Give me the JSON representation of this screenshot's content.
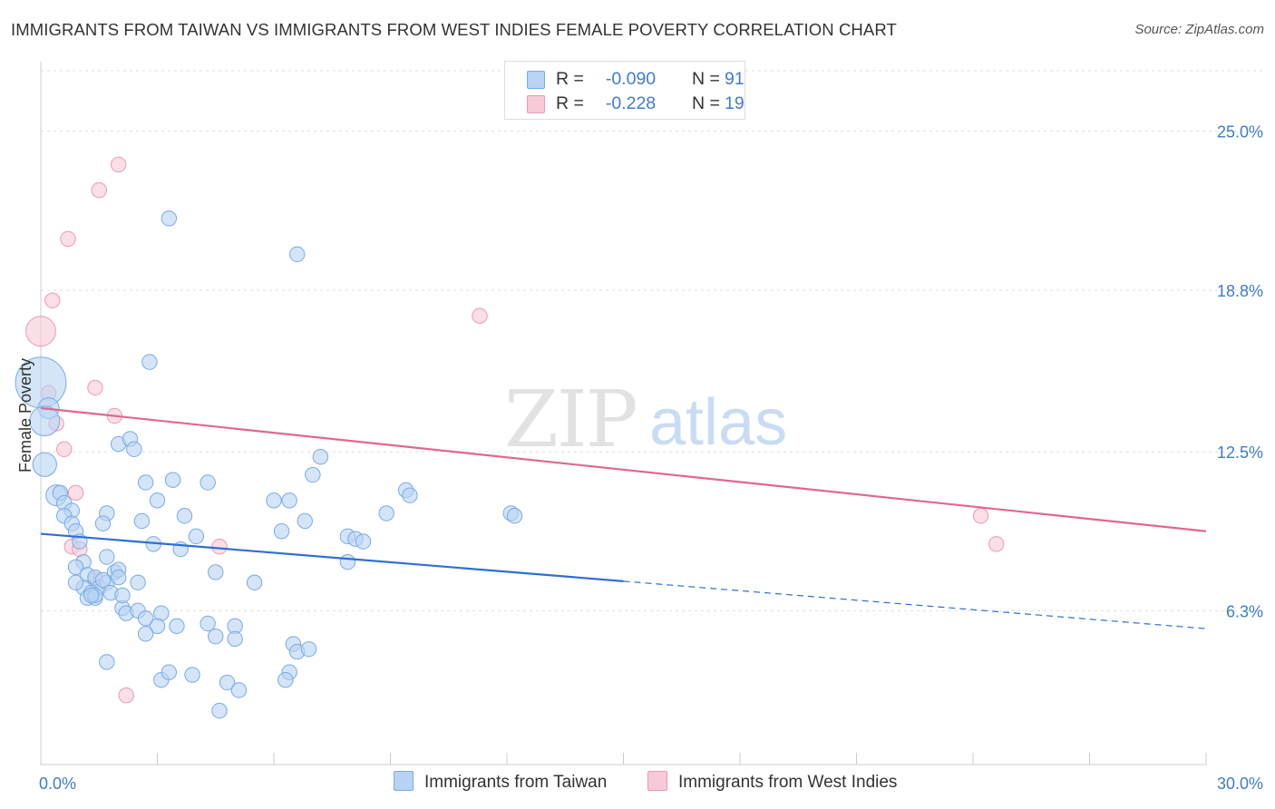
{
  "header": {
    "title": "IMMIGRANTS FROM TAIWAN VS IMMIGRANTS FROM WEST INDIES FEMALE POVERTY CORRELATION CHART",
    "source": "Source: ZipAtlas.com"
  },
  "colors": {
    "taiwan_fill": "#b8d3f4",
    "taiwan_stroke": "#7aaae6",
    "taiwan_line": "#2f6fd1",
    "westindies_fill": "#f8c9d7",
    "westindies_stroke": "#eb9ab4",
    "westindies_line": "#e0688f",
    "tick_label": "#3f7bd1",
    "grid": "#dddddd"
  },
  "legend": {
    "r_label": "R =",
    "n_label": "N =",
    "taiwan": {
      "r": "-0.090",
      "n": "91"
    },
    "westindies": {
      "r": "-0.228",
      "n": "19"
    }
  },
  "chart_data": {
    "type": "scatter",
    "title": "IMMIGRANTS FROM TAIWAN VS IMMIGRANTS FROM WEST INDIES FEMALE POVERTY CORRELATION CHART",
    "xlabel": "",
    "ylabel": "Female Poverty",
    "xlim": [
      0,
      30
    ],
    "ylim": [
      0.3,
      27.5
    ],
    "x_tick_labels": [
      "0.0%",
      "30.0%"
    ],
    "y_ticks": [
      6.3,
      12.5,
      18.8,
      25.0
    ],
    "y_tick_labels": [
      "6.3%",
      "12.5%",
      "18.8%",
      "25.0%"
    ],
    "watermark": {
      "zip": "ZIP",
      "atlas": "atlas"
    },
    "series": [
      {
        "name": "Immigrants from Taiwan",
        "r": -0.09,
        "n": 91,
        "trend": {
          "x0": 0.0,
          "y0": 9.3,
          "x_solid_end": 15.0,
          "x1": 30.0,
          "y1": 5.6
        },
        "points": [
          [
            0.0,
            15.2,
            34
          ],
          [
            0.2,
            14.2,
            14
          ],
          [
            0.1,
            13.7,
            20
          ],
          [
            0.1,
            12.0,
            16
          ],
          [
            0.4,
            10.8,
            14
          ],
          [
            0.5,
            10.9,
            10
          ],
          [
            0.6,
            10.5,
            10
          ],
          [
            0.8,
            10.2,
            10
          ],
          [
            0.6,
            10.0,
            10
          ],
          [
            0.8,
            9.7,
            10
          ],
          [
            0.9,
            9.4,
            10
          ],
          [
            1.0,
            9.0,
            10
          ],
          [
            1.1,
            8.2,
            10
          ],
          [
            0.9,
            8.0,
            10
          ],
          [
            1.2,
            7.7,
            10
          ],
          [
            1.1,
            7.2,
            10
          ],
          [
            1.4,
            7.6,
            10
          ],
          [
            1.5,
            7.2,
            10
          ],
          [
            1.7,
            7.4,
            10
          ],
          [
            1.8,
            7.0,
            10
          ],
          [
            1.3,
            7.0,
            10
          ],
          [
            1.2,
            6.8,
            10
          ],
          [
            1.4,
            6.8,
            10
          ],
          [
            1.4,
            6.9,
            10
          ],
          [
            2.1,
            6.4,
            10
          ],
          [
            2.2,
            6.2,
            10
          ],
          [
            2.5,
            6.3,
            10
          ],
          [
            2.7,
            6.0,
            10
          ],
          [
            3.1,
            6.2,
            10
          ],
          [
            3.0,
            5.7,
            10
          ],
          [
            3.5,
            5.7,
            10
          ],
          [
            2.7,
            5.4,
            10
          ],
          [
            1.7,
            8.4,
            10
          ],
          [
            1.9,
            7.8,
            10
          ],
          [
            2.0,
            7.9,
            10
          ],
          [
            2.5,
            7.4,
            10
          ],
          [
            2.9,
            8.9,
            10
          ],
          [
            3.6,
            8.7,
            10
          ],
          [
            4.0,
            9.2,
            10
          ],
          [
            3.7,
            10.0,
            10
          ],
          [
            2.6,
            9.8,
            10
          ],
          [
            3.0,
            10.6,
            10
          ],
          [
            2.7,
            11.3,
            10
          ],
          [
            3.4,
            11.4,
            10
          ],
          [
            4.3,
            11.3,
            10
          ],
          [
            2.0,
            12.8,
            10
          ],
          [
            2.3,
            13.0,
            10
          ],
          [
            2.4,
            12.6,
            10
          ],
          [
            1.7,
            10.1,
            10
          ],
          [
            1.6,
            9.7,
            10
          ],
          [
            1.6,
            7.5,
            10
          ],
          [
            2.0,
            7.6,
            10
          ],
          [
            4.5,
            7.8,
            10
          ],
          [
            4.3,
            5.8,
            10
          ],
          [
            4.5,
            5.3,
            10
          ],
          [
            5.5,
            7.4,
            10
          ],
          [
            6.0,
            10.6,
            10
          ],
          [
            6.4,
            10.6,
            10
          ],
          [
            6.2,
            9.4,
            10
          ],
          [
            6.8,
            9.8,
            10
          ],
          [
            7.0,
            11.6,
            10
          ],
          [
            7.2,
            12.3,
            10
          ],
          [
            7.9,
            9.2,
            10
          ],
          [
            8.1,
            9.1,
            10
          ],
          [
            8.3,
            9.0,
            10
          ],
          [
            7.9,
            8.2,
            10
          ],
          [
            8.9,
            10.1,
            10
          ],
          [
            9.4,
            11.0,
            10
          ],
          [
            9.5,
            10.8,
            10
          ],
          [
            12.1,
            10.1,
            10
          ],
          [
            12.2,
            10.0,
            10
          ],
          [
            2.8,
            16.0,
            10
          ],
          [
            3.3,
            21.6,
            10
          ],
          [
            6.6,
            20.2,
            10
          ],
          [
            6.5,
            5.0,
            10
          ],
          [
            6.6,
            4.7,
            10
          ],
          [
            6.9,
            4.8,
            10
          ],
          [
            6.4,
            3.9,
            10
          ],
          [
            6.3,
            3.6,
            10
          ],
          [
            5.0,
            5.7,
            10
          ],
          [
            5.0,
            5.2,
            10
          ],
          [
            3.1,
            3.6,
            10
          ],
          [
            3.3,
            3.9,
            10
          ],
          [
            3.9,
            3.8,
            10
          ],
          [
            4.8,
            3.5,
            10
          ],
          [
            5.1,
            3.2,
            10
          ],
          [
            4.6,
            2.4,
            10
          ],
          [
            1.7,
            4.3,
            10
          ],
          [
            0.9,
            7.4,
            10
          ],
          [
            1.3,
            6.9,
            10
          ],
          [
            2.1,
            6.9,
            10
          ]
        ]
      },
      {
        "name": "Immigrants from West Indies",
        "r": -0.228,
        "n": 19,
        "trend": {
          "x0": 0.0,
          "y0": 14.2,
          "x1": 30.0,
          "y1": 9.4
        },
        "points": [
          [
            0.0,
            17.2,
            20
          ],
          [
            0.3,
            18.4,
            10
          ],
          [
            0.7,
            20.8,
            10
          ],
          [
            1.5,
            22.7,
            10
          ],
          [
            2.0,
            23.7,
            10
          ],
          [
            0.2,
            14.8,
            10
          ],
          [
            0.4,
            13.6,
            10
          ],
          [
            0.6,
            12.6,
            10
          ],
          [
            1.4,
            15.0,
            10
          ],
          [
            1.9,
            13.9,
            10
          ],
          [
            0.9,
            10.9,
            10
          ],
          [
            0.8,
            8.8,
            10
          ],
          [
            1.0,
            8.7,
            10
          ],
          [
            1.4,
            7.5,
            10
          ],
          [
            4.6,
            8.8,
            10
          ],
          [
            11.3,
            17.8,
            10
          ],
          [
            24.2,
            10.0,
            10
          ],
          [
            24.6,
            8.9,
            10
          ],
          [
            2.2,
            3.0,
            10
          ]
        ]
      }
    ]
  },
  "bottom_legend": {
    "taiwan": "Immigrants from Taiwan",
    "westindies": "Immigrants from West Indies"
  }
}
